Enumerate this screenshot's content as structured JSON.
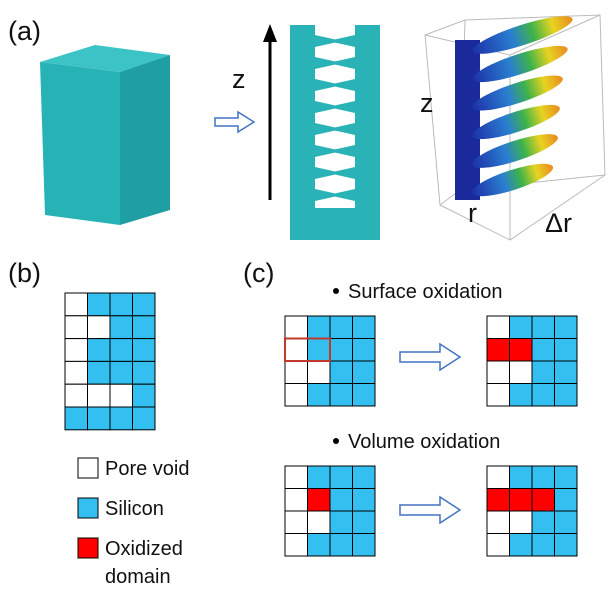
{
  "panel_a": {
    "label": "(a)",
    "axis_z": "z",
    "plot": {
      "z": "z",
      "r": "r",
      "dr": "Δr"
    }
  },
  "panel_b": {
    "label": "(b)"
  },
  "legend": [
    {
      "label_lines": [
        "Pore void"
      ]
    },
    {
      "label_lines": [
        "Silicon"
      ]
    },
    {
      "label_lines": [
        "Oxidized",
        "domain"
      ]
    }
  ],
  "panel_c": {
    "label": "(c)",
    "surface": "Surface oxidation",
    "volume": "Volume oxidation"
  }
}
